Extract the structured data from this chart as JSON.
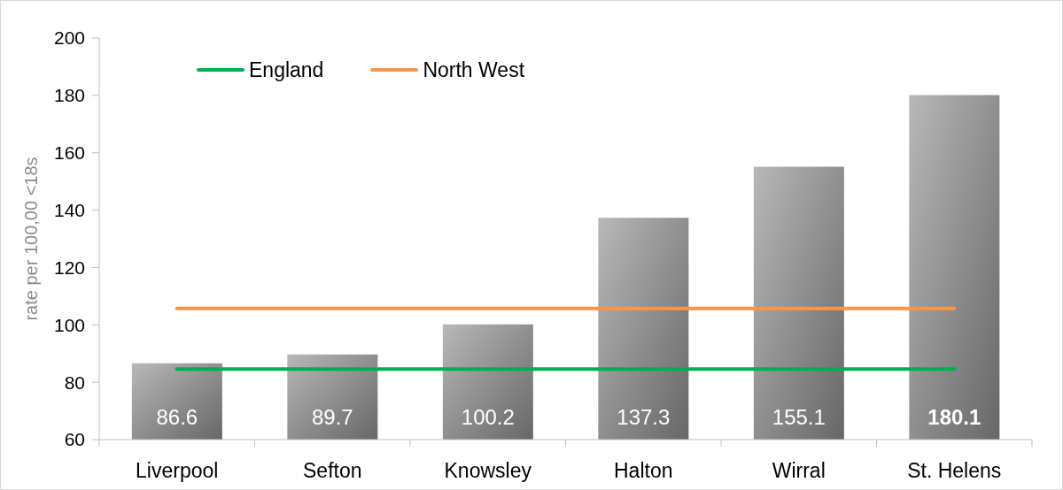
{
  "chart_data": {
    "type": "bar",
    "categories": [
      "Liverpool",
      "Sefton",
      "Knowsley",
      "Halton",
      "Wirral",
      "St. Helens"
    ],
    "ylabel": "rate per 100,00 <18s",
    "ylim": [
      60,
      200
    ],
    "yticks": [
      60,
      80,
      100,
      120,
      140,
      160,
      180,
      200
    ],
    "legend": "top left",
    "marker": "none",
    "series": [
      {
        "color": "#a6a6a6",
        "values": [
          86.6,
          89.7,
          100.2,
          137.3,
          155.1,
          180.1
        ],
        "value_labels": [
          "86.6",
          "89.7",
          "100.2",
          "137.3",
          "155.1",
          "180.1"
        ]
      },
      {
        "type": "line",
        "name": "England",
        "color": "#00b050",
        "values": [
          84.6,
          84.6,
          84.6,
          84.6,
          84.6,
          84.6
        ]
      },
      {
        "type": "line",
        "name": "North West",
        "color": "#f79646",
        "values": [
          105.7,
          105.7,
          105.7,
          105.7,
          105.7,
          105.7
        ]
      }
    ]
  }
}
